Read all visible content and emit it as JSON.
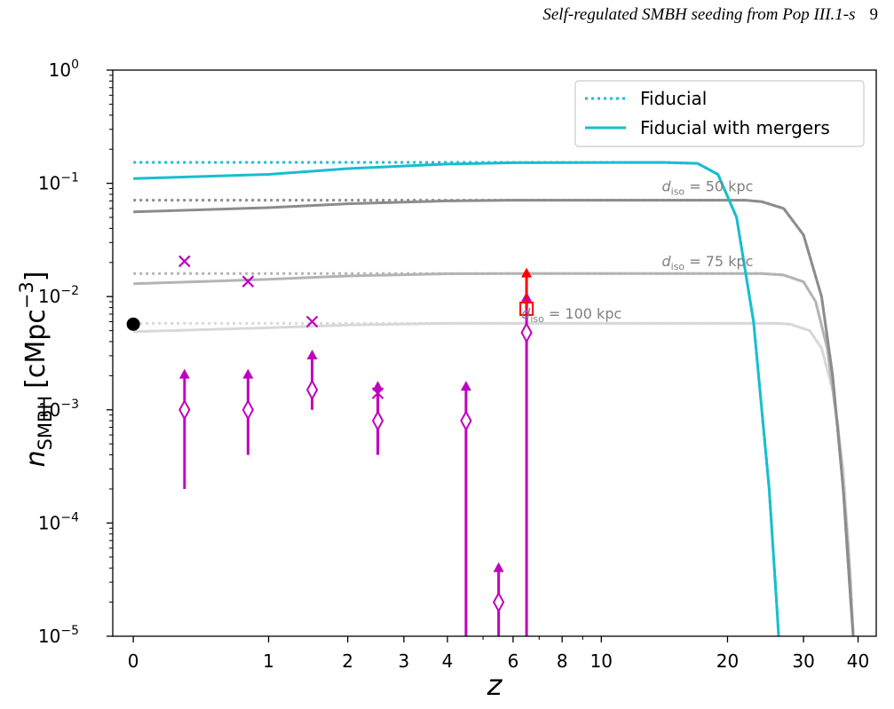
{
  "page_header": {
    "running_title": "Self-regulated SMBH seeding from Pop III.1-s",
    "page_number": "9"
  },
  "colors": {
    "fiducial": "#17becf",
    "d50": "#8c8c8c",
    "d75": "#b4b4b4",
    "d100": "#d8d8d8",
    "observations": "#bf00bf",
    "highlight": "#ff0000",
    "local": "#000000"
  },
  "chart_data": {
    "type": "line",
    "x_scale": "log(1+z)",
    "y_scale": "log",
    "xlabel": "z",
    "ylabel_main": "n",
    "ylabel_sub": "SMBH",
    "ylabel_unit": "[cMpc",
    "ylabel_unit_exp": "−3",
    "ylabel_unit_close": "]",
    "xlim": [
      -0.1,
      44
    ],
    "ylim": [
      1e-05,
      1
    ],
    "x_ticks": [
      {
        "value": 0,
        "label": "0"
      },
      {
        "value": 1,
        "label": "1"
      },
      {
        "value": 2,
        "label": "2"
      },
      {
        "value": 3,
        "label": "3"
      },
      {
        "value": 4,
        "label": "4"
      },
      {
        "value": 6,
        "label": "6"
      },
      {
        "value": 8,
        "label": "8"
      },
      {
        "value": 10,
        "label": "10"
      },
      {
        "value": 20,
        "label": "20"
      },
      {
        "value": 30,
        "label": "30"
      },
      {
        "value": 40,
        "label": "40"
      }
    ],
    "x_minor_ticks": [
      5,
      7,
      9
    ],
    "y_ticks": [
      {
        "value": 1e-05,
        "mantissa": "10",
        "exp": "−5"
      },
      {
        "value": 0.0001,
        "mantissa": "10",
        "exp": "−4"
      },
      {
        "value": 0.001,
        "mantissa": "10",
        "exp": "−3"
      },
      {
        "value": 0.01,
        "mantissa": "10",
        "exp": "−2"
      },
      {
        "value": 0.1,
        "mantissa": "10",
        "exp": "−1"
      },
      {
        "value": 1,
        "mantissa": "10",
        "exp": "0"
      }
    ],
    "legend": {
      "position": "upper right",
      "entries": [
        {
          "label": "Fiducial",
          "style": "dotted",
          "color": "#17becf"
        },
        {
          "label": "Fiducial with mergers",
          "style": "solid",
          "color": "#17becf"
        }
      ]
    },
    "series": [
      {
        "id": "fiducial",
        "color": "#17becf",
        "dotted": [
          [
            0,
            0.153
          ],
          [
            2,
            0.153
          ],
          [
            6,
            0.153
          ],
          [
            14,
            0.153
          ],
          [
            17,
            0.15
          ],
          [
            19,
            0.12
          ],
          [
            21,
            0.05
          ],
          [
            23,
            0.006
          ],
          [
            25,
            0.0002
          ],
          [
            26,
            2e-05
          ],
          [
            26.3,
            1e-05
          ]
        ],
        "solid": [
          [
            0,
            0.11
          ],
          [
            1,
            0.12
          ],
          [
            2,
            0.135
          ],
          [
            4,
            0.148
          ],
          [
            6,
            0.152
          ],
          [
            14,
            0.153
          ],
          [
            17,
            0.15
          ],
          [
            19,
            0.12
          ],
          [
            21,
            0.05
          ],
          [
            23,
            0.006
          ],
          [
            25,
            0.0002
          ],
          [
            26,
            2e-05
          ],
          [
            26.3,
            1e-05
          ]
        ]
      },
      {
        "id": "d50",
        "label": "d",
        "label_sub": "iso",
        "label_rest": " = 50 kpc",
        "label_at": [
          14,
          0.085
        ],
        "color": "#8c8c8c",
        "dotted": [
          [
            0,
            0.071
          ],
          [
            2,
            0.071
          ],
          [
            6,
            0.071
          ],
          [
            22,
            0.071
          ],
          [
            24,
            0.069
          ],
          [
            27,
            0.06
          ],
          [
            30,
            0.035
          ],
          [
            33,
            0.01
          ],
          [
            35,
            0.002
          ],
          [
            37,
            0.0002
          ],
          [
            38.5,
            2e-05
          ],
          [
            39,
            1e-05
          ]
        ],
        "solid": [
          [
            0,
            0.056
          ],
          [
            1,
            0.061
          ],
          [
            2,
            0.066
          ],
          [
            4,
            0.07
          ],
          [
            6,
            0.071
          ],
          [
            22,
            0.071
          ],
          [
            24,
            0.069
          ],
          [
            27,
            0.06
          ],
          [
            30,
            0.035
          ],
          [
            33,
            0.01
          ],
          [
            35,
            0.002
          ],
          [
            37,
            0.0002
          ],
          [
            38.5,
            2e-05
          ],
          [
            39,
            1e-05
          ]
        ]
      },
      {
        "id": "d75",
        "label": "d",
        "label_sub": "iso",
        "label_rest": " = 75 kpc",
        "label_at": [
          14,
          0.0185
        ],
        "color": "#b4b4b4",
        "dotted": [
          [
            0,
            0.016
          ],
          [
            2,
            0.016
          ],
          [
            6,
            0.016
          ],
          [
            24,
            0.016
          ],
          [
            27,
            0.0155
          ],
          [
            30,
            0.0135
          ],
          [
            32,
            0.009
          ],
          [
            34,
            0.0035
          ],
          [
            36,
            0.0007
          ],
          [
            38,
            6e-05
          ],
          [
            39,
            1e-05
          ]
        ],
        "solid": [
          [
            0,
            0.013
          ],
          [
            1,
            0.0142
          ],
          [
            2,
            0.0152
          ],
          [
            4,
            0.0159
          ],
          [
            6,
            0.016
          ],
          [
            24,
            0.016
          ],
          [
            27,
            0.0155
          ],
          [
            30,
            0.0135
          ],
          [
            32,
            0.009
          ],
          [
            34,
            0.0035
          ],
          [
            36,
            0.0007
          ],
          [
            38,
            6e-05
          ],
          [
            39,
            1e-05
          ]
        ]
      },
      {
        "id": "d100",
        "label": "d",
        "label_sub": "iso",
        "label_rest": " = 100 kpc",
        "label_at": [
          6.3,
          0.0064
        ],
        "color": "#d8d8d8",
        "dotted": [
          [
            0,
            0.0058
          ],
          [
            2,
            0.0058
          ],
          [
            6,
            0.0058
          ],
          [
            26,
            0.0058
          ],
          [
            28,
            0.0057
          ],
          [
            31,
            0.005
          ],
          [
            33,
            0.0035
          ],
          [
            35,
            0.0015
          ],
          [
            37,
            0.0003
          ],
          [
            38.5,
            3e-05
          ],
          [
            39,
            1e-05
          ]
        ],
        "solid": [
          [
            0,
            0.0049
          ],
          [
            1,
            0.0053
          ],
          [
            2,
            0.0056
          ],
          [
            4,
            0.0058
          ],
          [
            6,
            0.0058
          ],
          [
            26,
            0.0058
          ],
          [
            28,
            0.0057
          ],
          [
            31,
            0.005
          ],
          [
            33,
            0.0035
          ],
          [
            35,
            0.0015
          ],
          [
            37,
            0.0003
          ],
          [
            38.5,
            3e-05
          ],
          [
            39,
            1e-05
          ]
        ]
      }
    ],
    "local_point": {
      "x": 0,
      "y": 0.0057
    },
    "observations": {
      "lower_limits": [
        {
          "x": 0.3,
          "y": 0.001,
          "err_low": 0.0002,
          "arrow_to": 0.0023
        },
        {
          "x": 0.8,
          "y": 0.001,
          "err_low": 0.0004,
          "arrow_to": 0.0023
        },
        {
          "x": 1.5,
          "y": 0.0015,
          "err_low": 0.001,
          "arrow_to": 0.0034
        },
        {
          "x": 2.5,
          "y": 0.0008,
          "err_low": 0.0004,
          "arrow_to": 0.0018
        },
        {
          "x": 4.5,
          "y": 0.0008,
          "err_low": 1e-05,
          "arrow_to": 0.0018
        },
        {
          "x": 5.5,
          "y": 2e-05,
          "err_low": 1e-05,
          "arrow_to": 4.5e-05
        },
        {
          "x": 6.5,
          "y": 0.0048,
          "err_low": 1e-05,
          "arrow_to": 0.011
        }
      ],
      "crosses": [
        {
          "x": 0.3,
          "y": 0.0205
        },
        {
          "x": 0.8,
          "y": 0.0136
        },
        {
          "x": 1.5,
          "y": 0.006
        },
        {
          "x": 2.5,
          "y": 0.0014
        }
      ],
      "square": {
        "x": 6.5,
        "y": 0.0078,
        "arrow_to": 0.018
      }
    }
  }
}
